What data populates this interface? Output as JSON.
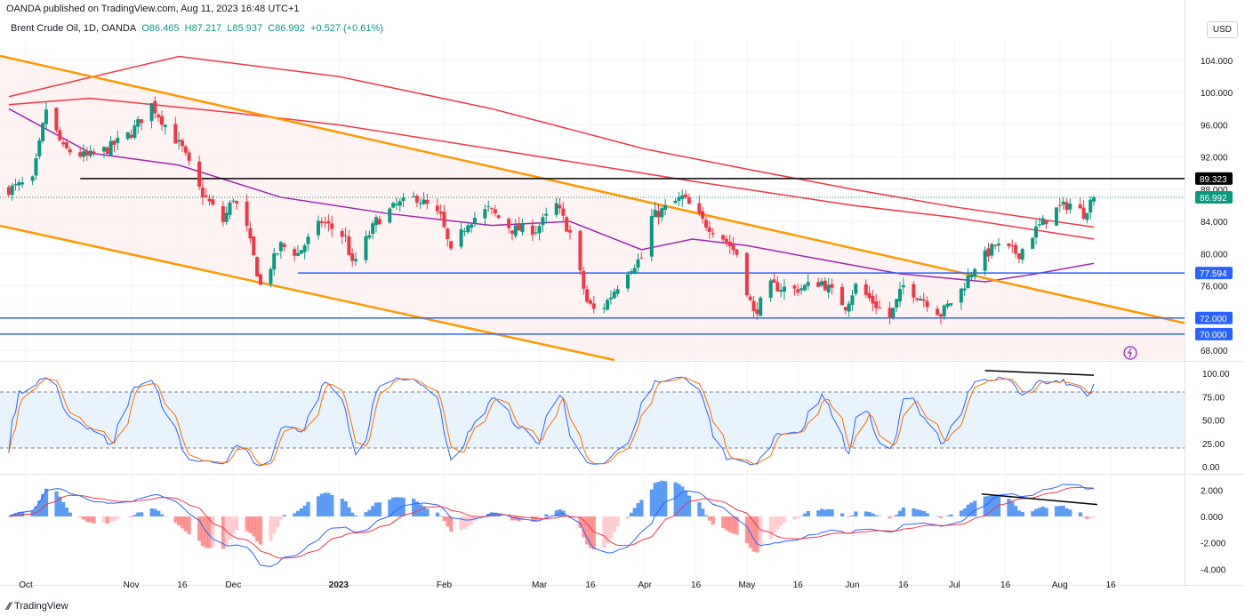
{
  "header": {
    "published": "OANDA published on TradingView.com, Aug 11, 2023 16:48 UTC+1",
    "symbol": "Brent Crude Oil, 1D, OANDA",
    "open": "O86.465",
    "high": "H87.217",
    "low": "L85.937",
    "close": "C86.992",
    "change": "+0.527 (+0.61%)",
    "currency": "USD"
  },
  "footer": {
    "brand": "TradingView"
  },
  "colors": {
    "up": "#089981",
    "down": "#f23645",
    "ma_fast": "#9c27b0",
    "ma_slow": "#f23645",
    "channel": "#ff9800",
    "level": "#2962ff",
    "resistance": "#000000",
    "stoch_k": "#2962ff",
    "stoch_d": "#ff6d00"
  },
  "chart_data": {
    "type": "candlestick",
    "title": "Brent Crude Oil, 1D, OANDA",
    "ylim": [
      66,
      107
    ],
    "price_ticks": [
      "104.000",
      "100.000",
      "96.000",
      "92.000",
      "88.000",
      "84.000",
      "80.000",
      "76.000",
      "68.000"
    ],
    "price_tick_values": [
      104,
      100,
      96,
      92,
      88,
      84,
      80,
      76,
      68
    ],
    "x_ticks": [
      {
        "label": "Oct",
        "date": "2022-10-01"
      },
      {
        "label": "Nov",
        "date": "2022-11-01"
      },
      {
        "label": "16",
        "date": "2022-11-16"
      },
      {
        "label": "Dec",
        "date": "2022-12-01"
      },
      {
        "label": "2023",
        "date": "2023-01-01"
      },
      {
        "label": "Feb",
        "date": "2023-02-01"
      },
      {
        "label": "Mar",
        "date": "2023-03-01"
      },
      {
        "label": "16",
        "date": "2023-03-16"
      },
      {
        "label": "Apr",
        "date": "2023-04-01"
      },
      {
        "label": "16",
        "date": "2023-04-16"
      },
      {
        "label": "May",
        "date": "2023-05-01"
      },
      {
        "label": "16",
        "date": "2023-05-16"
      },
      {
        "label": "Jun",
        "date": "2023-06-01"
      },
      {
        "label": "16",
        "date": "2023-06-16"
      },
      {
        "label": "Jul",
        "date": "2023-07-01"
      },
      {
        "label": "16",
        "date": "2023-07-16"
      },
      {
        "label": "Aug",
        "date": "2023-08-01"
      },
      {
        "label": "16",
        "date": "2023-08-16"
      }
    ],
    "close_anchors": [
      [
        "2022-09-26",
        88
      ],
      [
        "2022-10-03",
        89
      ],
      [
        "2022-10-07",
        98
      ],
      [
        "2022-10-12",
        93
      ],
      [
        "2022-10-19",
        92
      ],
      [
        "2022-10-25",
        93
      ],
      [
        "2022-11-01",
        95
      ],
      [
        "2022-11-07",
        98.5
      ],
      [
        "2022-11-11",
        96
      ],
      [
        "2022-11-16",
        93
      ],
      [
        "2022-11-21",
        88
      ],
      [
        "2022-11-28",
        84
      ],
      [
        "2022-12-01",
        87
      ],
      [
        "2022-12-05",
        83
      ],
      [
        "2022-12-09",
        76
      ],
      [
        "2022-12-15",
        81
      ],
      [
        "2022-12-20",
        80
      ],
      [
        "2022-12-27",
        84
      ],
      [
        "2023-01-03",
        82
      ],
      [
        "2023-01-05",
        78.5
      ],
      [
        "2023-01-12",
        84
      ],
      [
        "2023-01-18",
        86
      ],
      [
        "2023-01-24",
        87
      ],
      [
        "2023-01-31",
        84.5
      ],
      [
        "2023-02-03",
        80
      ],
      [
        "2023-02-08",
        84
      ],
      [
        "2023-02-14",
        85.5
      ],
      [
        "2023-02-21",
        83
      ],
      [
        "2023-02-28",
        83
      ],
      [
        "2023-03-06",
        86
      ],
      [
        "2023-03-10",
        82.5
      ],
      [
        "2023-03-15",
        74
      ],
      [
        "2023-03-17",
        73
      ],
      [
        "2023-03-20",
        73.5
      ],
      [
        "2023-03-27",
        78
      ],
      [
        "2023-03-31",
        79.5
      ],
      [
        "2023-04-03",
        84.5
      ],
      [
        "2023-04-12",
        87
      ],
      [
        "2023-04-18",
        84
      ],
      [
        "2023-04-24",
        82
      ],
      [
        "2023-04-28",
        80
      ],
      [
        "2023-05-03",
        72.5
      ],
      [
        "2023-05-08",
        76
      ],
      [
        "2023-05-15",
        75.5
      ],
      [
        "2023-05-23",
        76.5
      ],
      [
        "2023-05-30",
        73.5
      ],
      [
        "2023-06-02",
        76
      ],
      [
        "2023-06-12",
        72
      ],
      [
        "2023-06-16",
        76
      ],
      [
        "2023-06-23",
        74
      ],
      [
        "2023-06-27",
        72.5
      ],
      [
        "2023-07-03",
        75.5
      ],
      [
        "2023-07-07",
        78.5
      ],
      [
        "2023-07-13",
        81
      ],
      [
        "2023-07-20",
        80
      ],
      [
        "2023-07-25",
        83
      ],
      [
        "2023-07-31",
        85.5
      ],
      [
        "2023-08-04",
        86.2
      ],
      [
        "2023-08-08",
        85
      ],
      [
        "2023-08-10",
        86.465
      ],
      [
        "2023-08-11",
        86.992
      ]
    ],
    "last_candle": {
      "date": "2023-08-11",
      "open": 86.465,
      "high": 87.217,
      "low": 85.937,
      "close": 86.992
    },
    "moving_averages": [
      {
        "name": "MA fast",
        "color": "#9c27b0",
        "points": [
          [
            "2022-09-26",
            98
          ],
          [
            "2022-10-20",
            92.5
          ],
          [
            "2022-11-15",
            91
          ],
          [
            "2022-12-15",
            87
          ],
          [
            "2023-01-15",
            85
          ],
          [
            "2023-02-15",
            83.5
          ],
          [
            "2023-03-10",
            84
          ],
          [
            "2023-03-31",
            80.5
          ],
          [
            "2023-04-15",
            81.8
          ],
          [
            "2023-05-01",
            81
          ],
          [
            "2023-05-20",
            79.5
          ],
          [
            "2023-06-15",
            77.5
          ],
          [
            "2023-07-10",
            76.5
          ],
          [
            "2023-07-25",
            77.5
          ],
          [
            "2023-08-11",
            78.8
          ]
        ]
      },
      {
        "name": "MA slow A",
        "color": "#f23645",
        "points": [
          [
            "2022-09-26",
            99.5
          ],
          [
            "2022-11-15",
            104.5
          ],
          [
            "2023-01-01",
            102
          ],
          [
            "2023-02-15",
            98
          ],
          [
            "2023-04-01",
            93
          ],
          [
            "2023-05-01",
            90.5
          ],
          [
            "2023-06-01",
            88
          ],
          [
            "2023-07-01",
            85.8
          ],
          [
            "2023-08-11",
            83.3
          ]
        ]
      },
      {
        "name": "MA slow B",
        "color": "#f23645",
        "points": [
          [
            "2022-09-26",
            98.5
          ],
          [
            "2022-10-20",
            99.3
          ],
          [
            "2022-12-01",
            97.5
          ],
          [
            "2023-01-01",
            96
          ],
          [
            "2023-02-15",
            93
          ],
          [
            "2023-04-15",
            89
          ],
          [
            "2023-06-01",
            86
          ],
          [
            "2023-07-01",
            84.5
          ],
          [
            "2023-08-11",
            81.8
          ]
        ]
      }
    ],
    "channel": {
      "upper": [
        [
          "2022-09-22",
          104.7
        ],
        [
          "2023-08-29",
          72.2
        ]
      ],
      "lower": [
        [
          "2022-09-22",
          83.6
        ],
        [
          "2023-03-23",
          66.8
        ]
      ]
    },
    "levels": [
      {
        "value": 89.323,
        "label": "89.323",
        "color": "#000000",
        "from": "2022-10-17"
      },
      {
        "value": 77.594,
        "label": "77.594",
        "color": "#2962ff",
        "from": "2022-12-20"
      },
      {
        "value": 72.0,
        "label": "72.000",
        "color": "#2962ff",
        "from": "2022-09-22"
      },
      {
        "value": 70.0,
        "label": "70.000",
        "color": "#2962ff",
        "from": "2022-09-22"
      }
    ],
    "current_price": {
      "value": 86.992,
      "label": "86.992"
    },
    "stochastic": {
      "ticks": [
        "100.00",
        "75.00",
        "50.00",
        "25.00",
        "0.00"
      ],
      "tick_values": [
        100,
        75,
        50,
        25,
        0
      ],
      "upper_band": 80,
      "lower_band": 20,
      "divergence": [
        [
          "2023-07-10",
          103
        ],
        [
          "2023-08-11",
          98
        ]
      ]
    },
    "macd": {
      "ticks": [
        "2.000",
        "0.000",
        "-2.000",
        "-4.000"
      ],
      "tick_values": [
        2,
        0,
        -2,
        -4
      ],
      "divergence": [
        [
          "2023-07-09",
          1.7
        ],
        [
          "2023-08-12",
          0.9
        ]
      ]
    }
  }
}
